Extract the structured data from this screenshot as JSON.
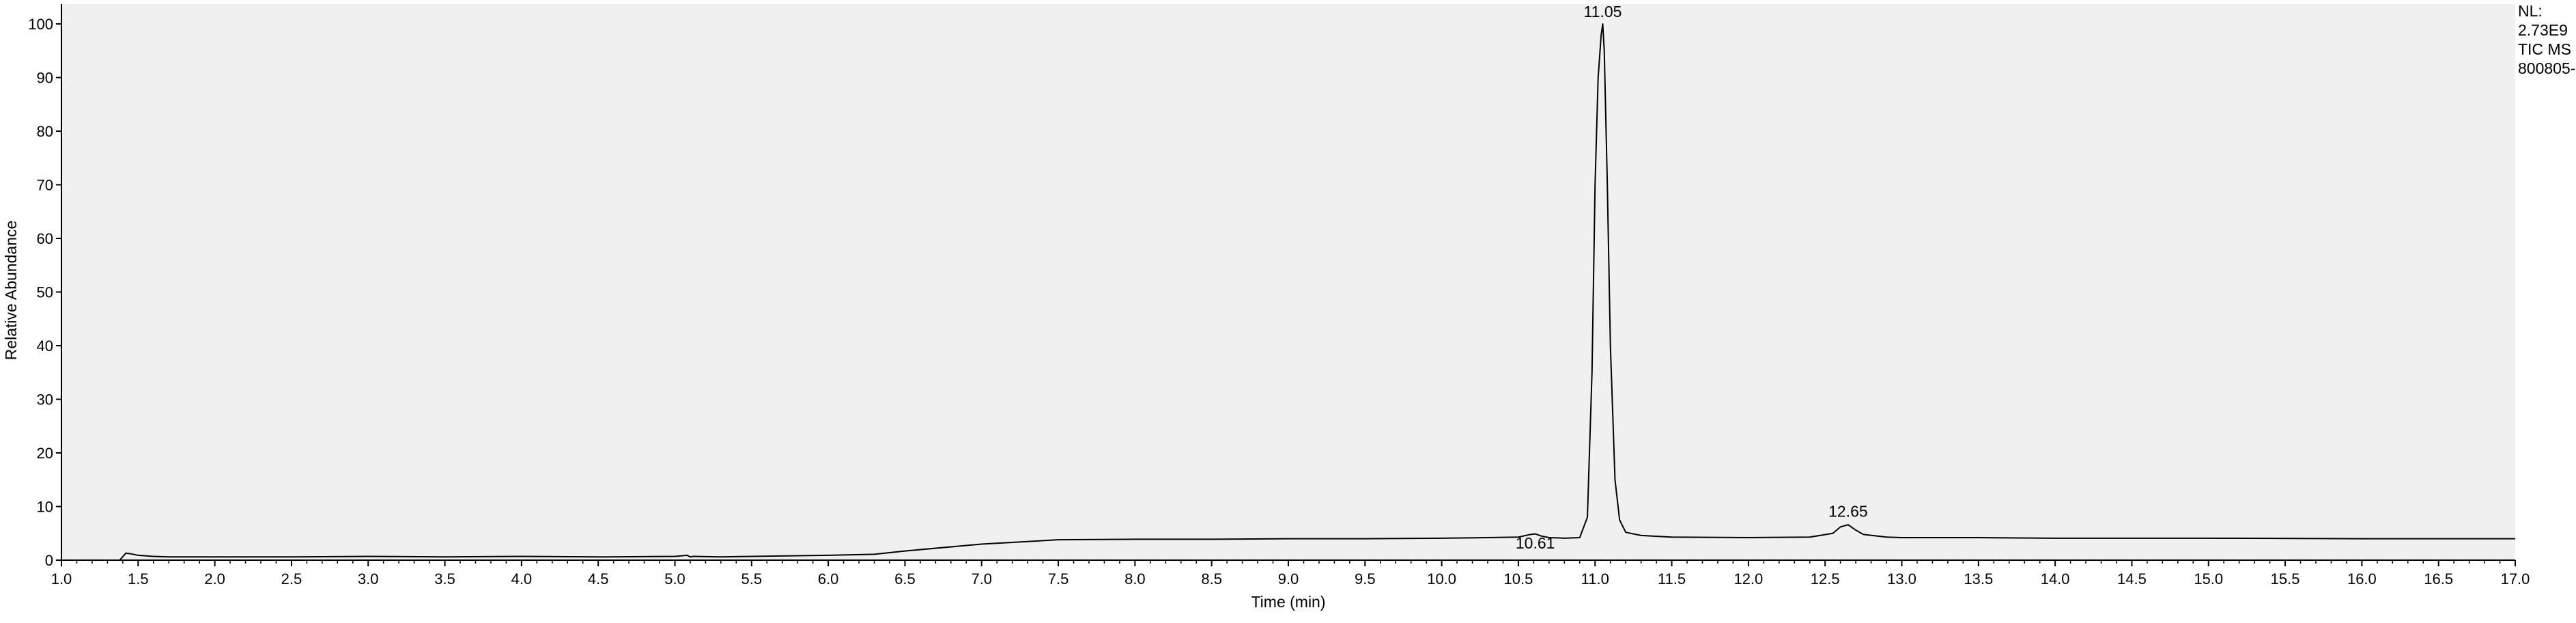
{
  "chart_data": {
    "type": "line",
    "title": "",
    "xlabel": "Time (min)",
    "ylabel": "Relative Abundance",
    "xlim": [
      1.0,
      17.0
    ],
    "ylim": [
      0,
      100
    ],
    "grid": false,
    "x_ticks": [
      "1.0",
      "1.5",
      "2.0",
      "2.5",
      "3.0",
      "3.5",
      "4.0",
      "4.5",
      "5.0",
      "5.5",
      "6.0",
      "6.5",
      "7.0",
      "7.5",
      "8.0",
      "8.5",
      "9.0",
      "9.5",
      "10.0",
      "10.5",
      "11.0",
      "11.5",
      "12.0",
      "12.5",
      "13.0",
      "13.5",
      "14.0",
      "14.5",
      "15.0",
      "15.5",
      "16.0",
      "16.5",
      "17.0"
    ],
    "y_ticks": [
      "0",
      "10",
      "20",
      "30",
      "40",
      "50",
      "60",
      "70",
      "80",
      "90",
      "100"
    ],
    "info": [
      "NL:",
      "2.73E9",
      "TIC  MS",
      "800805-"
    ],
    "peak_labels": [
      {
        "text": "10.61",
        "x": 10.61,
        "y": 0.9
      },
      {
        "text": "11.05",
        "x": 11.05,
        "y": 100
      },
      {
        "text": "12.65",
        "x": 12.65,
        "y": 6.8
      }
    ],
    "series": [
      {
        "x": [
          1.0,
          1.38,
          1.42,
          1.45,
          1.5,
          1.6,
          1.7,
          2.0,
          2.5,
          3.0,
          3.5,
          4.0,
          4.5,
          5.0,
          5.08,
          5.1,
          5.12,
          5.3,
          5.5,
          6.0,
          6.3,
          6.5,
          7.0,
          7.5,
          8.0,
          8.5,
          9.0,
          9.5,
          10.0,
          10.3,
          10.5,
          10.58,
          10.61,
          10.65,
          10.7,
          10.8,
          10.9,
          10.95,
          10.98,
          11.0,
          11.02,
          11.04,
          11.05,
          11.06,
          11.08,
          11.1,
          11.13,
          11.16,
          11.2,
          11.3,
          11.5,
          12.0,
          12.4,
          12.55,
          12.6,
          12.65,
          12.7,
          12.75,
          12.9,
          13.0,
          13.5,
          14.0,
          15.0,
          16.0,
          17.0
        ],
        "y": [
          0,
          0,
          1.3,
          1.2,
          0.9,
          0.7,
          0.6,
          0.6,
          0.6,
          0.7,
          0.6,
          0.7,
          0.6,
          0.7,
          0.9,
          0.6,
          0.7,
          0.6,
          0.7,
          0.9,
          1.1,
          1.7,
          3.0,
          3.8,
          3.9,
          3.9,
          4.0,
          4.0,
          4.1,
          4.2,
          4.3,
          4.8,
          4.9,
          4.5,
          4.2,
          4.1,
          4.2,
          8.0,
          35.0,
          70.0,
          90.0,
          98.0,
          100.0,
          95.0,
          70.0,
          40.0,
          15.0,
          7.5,
          5.2,
          4.6,
          4.3,
          4.2,
          4.3,
          5.0,
          6.2,
          6.6,
          5.6,
          4.8,
          4.3,
          4.2,
          4.2,
          4.1,
          4.1,
          4.0,
          4.0
        ]
      }
    ]
  }
}
